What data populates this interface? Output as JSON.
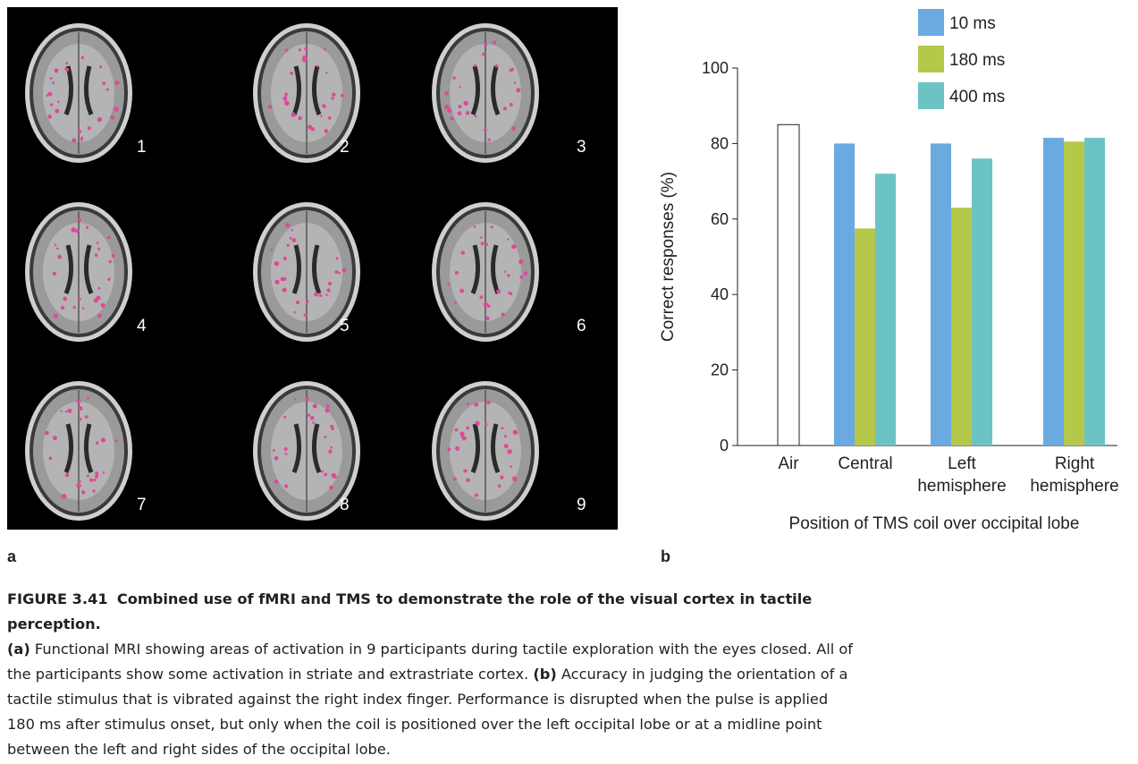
{
  "panel_a": {
    "letter": "a",
    "scans": [
      {
        "label": "1"
      },
      {
        "label": "2"
      },
      {
        "label": "3"
      },
      {
        "label": "4"
      },
      {
        "label": "5"
      },
      {
        "label": "6"
      },
      {
        "label": "7"
      },
      {
        "label": "8"
      },
      {
        "label": "9"
      }
    ],
    "colors": {
      "background": "#000000",
      "activation": "#e0489a"
    }
  },
  "panel_b": {
    "letter": "b"
  },
  "chart_data": {
    "type": "bar",
    "title": "",
    "xlabel": "Position of TMS coil over occipital lobe",
    "ylabel": "Correct responses (%)",
    "ylim": [
      0,
      100
    ],
    "yticks": [
      "0",
      "20",
      "40",
      "60",
      "80",
      "100"
    ],
    "categories": [
      "Air",
      "Central",
      "Left\nhemisphere",
      "Right\nhemisphere"
    ],
    "air_value": 85,
    "legend_position": "top-right",
    "grid": false,
    "series": [
      {
        "name": "10 ms",
        "color": "#6aaae0",
        "values": [
          null,
          80,
          80,
          81.5
        ]
      },
      {
        "name": "180 ms",
        "color": "#b5c84a",
        "values": [
          null,
          57.5,
          63,
          80.5
        ]
      },
      {
        "name": "400 ms",
        "color": "#6cc3c4",
        "values": [
          null,
          72,
          76,
          81.5
        ]
      }
    ]
  },
  "caption": {
    "figure_label": "FIGURE 3.41",
    "title": "Combined use of fMRI and TMS to demonstrate the role of the visual cortex in tactile perception.",
    "part_a_label": "(a)",
    "part_a_text": "Functional MRI showing areas of activation in 9 participants during tactile exploration with the eyes closed. All of the participants show some activation in striate and extrastriate cortex.",
    "part_b_label": "(b)",
    "part_b_text": "Accuracy in judging the orientation of a tactile stimulus that is vibrated against the right index finger. Performance is disrupted when the pulse is applied 180 ms after stimulus onset, but only when the coil is positioned over the left occipital lobe or at a midline point between the left and right sides of the occipital lobe."
  }
}
